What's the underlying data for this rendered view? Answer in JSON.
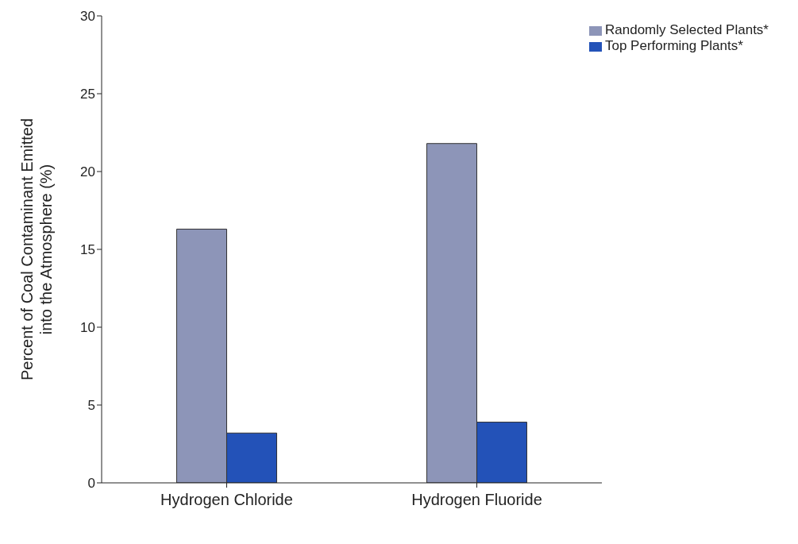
{
  "chart_data": {
    "type": "bar",
    "ylabel": "Percent of Coal Contaminant Emitted\ninto the Atmosphere (%)",
    "categories": [
      "Hydrogen Chloride",
      "Hydrogen Fluoride"
    ],
    "series": [
      {
        "name": "Randomly Selected Plants*",
        "color": "#8d95b8",
        "values": [
          16.3,
          21.8
        ]
      },
      {
        "name": "Top Performing Plants*",
        "color": "#2352b8",
        "values": [
          3.2,
          3.9
        ]
      }
    ],
    "ylim": [
      0,
      30
    ],
    "yticks": [
      0,
      5,
      10,
      15,
      20,
      25,
      30
    ],
    "grid": false,
    "legend": "top right"
  }
}
